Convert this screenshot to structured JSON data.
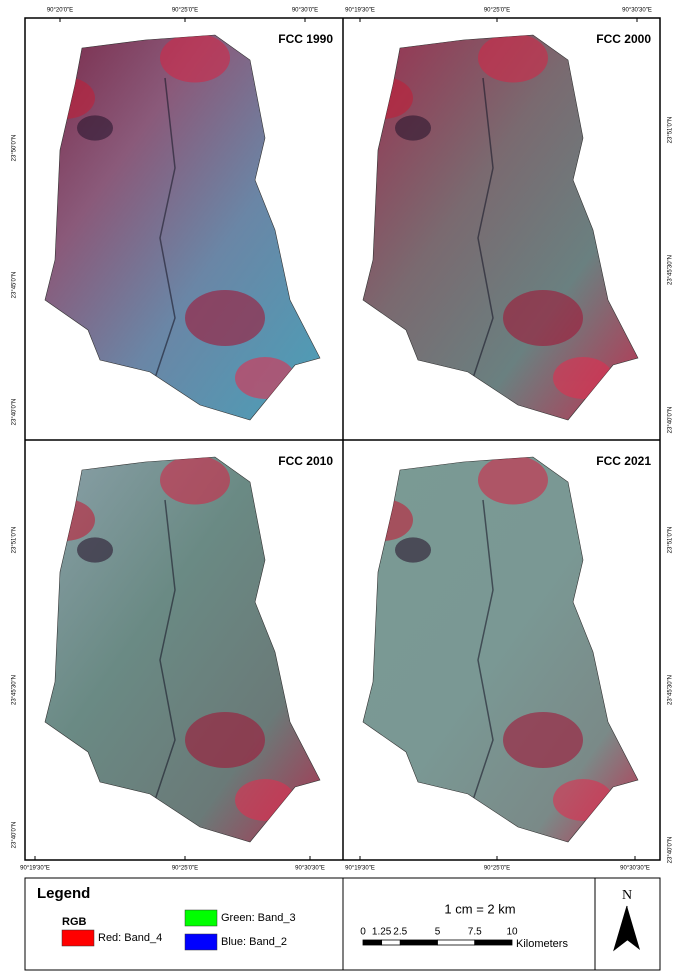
{
  "panels": [
    {
      "title": "FCC 1990",
      "x_labels": [
        "90°20'0\"E",
        "90°25'0\"E",
        "90°30'0\"E"
      ],
      "y_labels": [
        "23°50'0\"N",
        "23°45'0\"N",
        "23°40'0\"N"
      ]
    },
    {
      "title": "FCC 2000",
      "x_labels": [
        "90°19'30\"E",
        "90°25'0\"E",
        "90°30'30\"E"
      ],
      "y_labels": [
        "23°51'0\"N",
        "23°45'30\"N",
        "23°40'0\"N"
      ]
    },
    {
      "title": "FCC 2010",
      "x_labels": [
        "90°19'30\"E",
        "90°25'0\"E",
        "90°30'30\"E"
      ],
      "y_labels": [
        "23°51'0\"N",
        "23°45'30\"N",
        "23°40'0\"N"
      ]
    },
    {
      "title": "FCC 2021",
      "x_labels": [
        "90°19'30\"E",
        "90°25'0\"E",
        "90°30'30\"E"
      ],
      "y_labels": [
        "23°51'0\"N",
        "23°45'30\"N",
        "23°40'0\"N"
      ]
    }
  ],
  "legend": {
    "title": "Legend",
    "group": "RGB",
    "items": [
      {
        "label": "Red:   Band_4",
        "color": "#ff0000"
      },
      {
        "label": "Green: Band_3",
        "color": "#00ff00"
      },
      {
        "label": "Blue:  Band_2",
        "color": "#0000ff"
      }
    ]
  },
  "scale": {
    "ratio": "1 cm = 2 km",
    "ticks": [
      0,
      1.25,
      2.5,
      5,
      7.5,
      10
    ],
    "unit": "Kilometers"
  },
  "north": "N"
}
